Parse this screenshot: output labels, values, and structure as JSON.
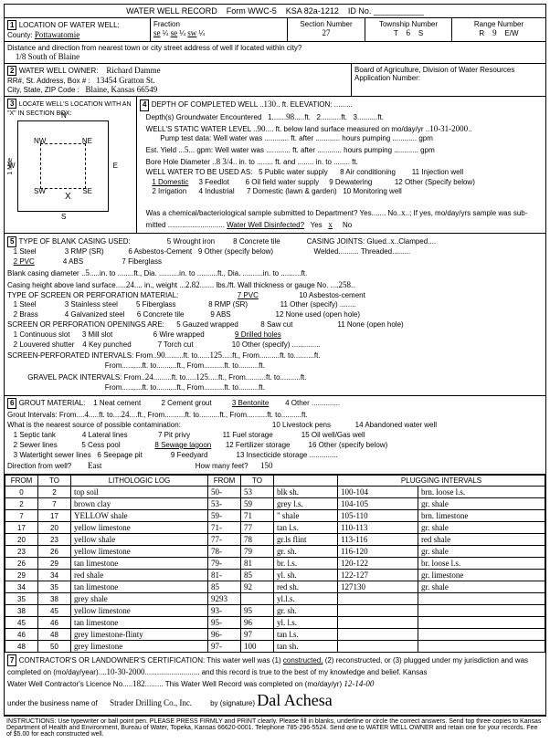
{
  "header": {
    "title": "WATER WELL RECORD",
    "form": "Form WWC-5",
    "ksa": "KSA 82a-1212",
    "id_label": "ID No."
  },
  "loc": {
    "label": "LOCATION OF WATER WELL:",
    "county_label": "County:",
    "county": "Pottawatomie",
    "fraction_label": "Fraction",
    "f1": "se",
    "q1": "¼",
    "f2": "se",
    "q2": "¼",
    "f3": "sw",
    "q3": "¼",
    "section_label": "Section Number",
    "section": "27",
    "township_label": "Township Number",
    "township": "6",
    "ts": "S",
    "range_label": "Range Number",
    "range": "9",
    "rew": "E/W",
    "dist_label": "Distance and direction from nearest town or city street address of well if located within city?",
    "dist": "1/8 South of Blaine"
  },
  "owner": {
    "label": "WATER WELL OWNER:",
    "name": "Richard Damme",
    "addr_label": "RR#, St. Address, Box # :",
    "addr": "13454  Gratton St.",
    "city_label": "City, State, ZIP Code :",
    "city": "Blaine, Kansas  66549",
    "board": "Board of Agriculture, Division of Water Resources",
    "appno": "Application Number:"
  },
  "sec3": {
    "label": "LOCATE WELL'S LOCATION WITH AN \"X\" IN SECTION BOX:",
    "nw": "NW",
    "ne": "NE",
    "sw": "SW",
    "se": "SE",
    "n": "N",
    "s": "S",
    "e": "E",
    "w": "W",
    "mile": "1 Mile"
  },
  "sec4": {
    "label": "DEPTH OF COMPLETED WELL",
    "depth": "130",
    "ft_elev": "ft. ELEVATION:",
    "gw_label": "Depth(s) Groundwater Encountered",
    "gw1": "98",
    "gw_ft": "ft.",
    "swl_label": "WELL'S STATIC WATER LEVEL",
    "swl": "90",
    "swl_txt": "ft. below land surface measured on mo/day/yr",
    "swl_date": "10-31-2000",
    "pump_label": "Pump test data:  Well water was",
    "pump_ft": "ft. after",
    "pump_hrs": "hours pumping",
    "pump_gpm": "gpm",
    "yield_label": "Est. Yield",
    "yield": "5",
    "yield_gpm": "gpm:  Well water was",
    "yield_ft": "ft. after",
    "yield_hrs": "hours pumping",
    "yield_gpm2": "gpm",
    "bore_label": "Bore Hole Diameter",
    "bore": "8 3/4",
    "bore_in": "in. to",
    "bore_ft": "ft. and",
    "bore_in2": "in. to",
    "bore_ft2": "ft.",
    "use_label": "WELL WATER TO BE USED AS:",
    "u1": "1 Domestic",
    "u2": "2 Irrigation",
    "u3": "3 Feedlot",
    "u4": "4 Industrial",
    "u5": "5 Public water supply",
    "u6": "6 Oil field water supply",
    "u7": "7 Domestic (lawn & garden)",
    "u8": "8 Air conditioning",
    "u9": "9 Dewatering",
    "u10": "10 Monitoring well",
    "u11": "11 Injection well",
    "u12": "12 Other (Specify below)",
    "chem": "Was a chemical/bacteriological sample submitted to Department?  Yes",
    "chem_no": "No",
    "chem_x": "x",
    "chem_txt": "; If yes, mo/day/yrs sample was sub-",
    "mitted": "mitted",
    "disinf": "Water Well Disinfected?",
    "disinf_yes": "Yes",
    "disinf_x": "x",
    "disinf_no": "No"
  },
  "sec5": {
    "label": "TYPE OF BLANK CASING USED:",
    "c1": "1 Steel",
    "c2": "2 PVC",
    "c3": "3 RMP (SR)",
    "c4": "4 ABS",
    "c5": "5 Wrought iron",
    "c6": "6 Asbestos-Cement",
    "c7": "7 Fiberglass",
    "c8": "8 Concrete tile",
    "c9": "9 Other (specify below)",
    "joints": "CASING JOINTS:  Glued",
    "jx": "x",
    "jclamp": "Clamped",
    "jweld": "Welded",
    "jthread": "Threaded",
    "bcd_label": "Blank casing diameter",
    "bcd": "5",
    "bcd_in": "in. to",
    "bcd_ft": "ft., Dia.",
    "bcd_in2": "in. to",
    "bcd_ft2": "ft., Dia.",
    "bcd_in3": "in. to",
    "bcd_ft3": "ft.",
    "chals_label": "Casing height above land surface",
    "chals": "24",
    "chals_in": "in., weight",
    "chals_w": "2.82",
    "chals_lbs": "lbs./ft. Wall thickness or gauge No.",
    "gauge": ".258",
    "screen_label": "TYPE OF SCREEN OR PERFORATION MATERIAL:",
    "s1": "1 Steel",
    "s2": "2 Brass",
    "s3": "3 Stainless steel",
    "s4": "4 Galvanized steel",
    "s5": "5 Fiberglass",
    "s6": "6 Concrete tile",
    "s7": "7 PVC",
    "s8": "8 RMP (SR)",
    "s9": "9 ABS",
    "s10": "10 Asbestos-cement",
    "s11": "11 Other (specify)",
    "s12": "12 None used (open hole)",
    "perf_label": "SCREEN OR PERFORATION OPENINGS ARE:",
    "p1": "1 Continuous slot",
    "p2": "2 Louvered shutter",
    "p3": "3 Mill slot",
    "p4": "4 Key punched",
    "p5": "5 Gauzed wrapped",
    "p6": "6 Wire wrapped",
    "p7": "7 Torch cut",
    "p8": "8 Saw cut",
    "p9": "9 Drilled holes",
    "p10": "10 Other (specify)",
    "p11": "11 None (open hole)",
    "spi_label": "SCREEN-PERFORATED INTERVALS:  From",
    "spi_from": "90",
    "spi_to": "125",
    "gpi_label": "GRAVEL PACK INTERVALS:  From",
    "gpi_from": "24",
    "gpi_to": "125"
  },
  "sec6": {
    "label": "GROUT MATERIAL:",
    "g1": "1 Neat cement",
    "g2": "2 Cement grout",
    "g3": "3 Bentonite",
    "g4": "4 Other",
    "gi_label": "Grout Intervals:  From",
    "gi_from": "4",
    "gi_ft_to": "ft. to",
    "gi_to": "24",
    "gi_ft": "ft., From",
    "contam_label": "What is the nearest source of possible contamination:",
    "n1": "1 Septic tank",
    "n2": "2 Sewer lines",
    "n3": "3 Watertight sewer lines",
    "n4": "4 Lateral lines",
    "n5": "5 Cess pool",
    "n6": "6 Seepage pit",
    "n7": "7 Pit privy",
    "n8": "8 Sewage lagoon",
    "n9": "9 Feedyard",
    "n10": "10 Livestock pens",
    "n11": "11 Fuel storage",
    "n12": "12 Fertilizer storage",
    "n13": "13 Insecticide storage",
    "n14": "14 Abandoned water well",
    "n15": "15 Oil well/Gas well",
    "n16": "16 Other (specify below)",
    "dir_label": "Direction from well?",
    "dir": "East",
    "feet_label": "How many feet?",
    "feet": "150"
  },
  "log": {
    "h_from": "FROM",
    "h_to": "TO",
    "h_lith": "LITHOLOGIC LOG",
    "h_from2": "FROM",
    "h_to2": "TO",
    "h_plug": "PLUGGING INTERVALS",
    "rows": [
      {
        "f": "0",
        "t": "2",
        "l": "top soil",
        "f2": "50-",
        "t2": "53",
        "c": "blk sh.",
        "p": "100-104",
        "pd": "brn. loose l.s."
      },
      {
        "f": "2",
        "t": "7",
        "l": "brown clay",
        "f2": "53-",
        "t2": "59",
        "c": "grey l.s.",
        "p": "104-105",
        "pd": "gr. shale"
      },
      {
        "f": "7",
        "t": "17",
        "l": "YELLOW shale",
        "f2": "59-",
        "t2": "71",
        "c": "\" shale",
        "p": "105-110",
        "pd": "brn. limestone"
      },
      {
        "f": "17",
        "t": "20",
        "l": "yellow limestone",
        "f2": "71-",
        "t2": "77",
        "c": "tan l.s.",
        "p": "110-113",
        "pd": "gr. shale"
      },
      {
        "f": "20",
        "t": "23",
        "l": "yellow shale",
        "f2": "77-",
        "t2": "78",
        "c": "gr.ls flint",
        "p": "113-116",
        "pd": "red shale"
      },
      {
        "f": "23",
        "t": "26",
        "l": "yellow limestone",
        "f2": "78-",
        "t2": "79",
        "c": "gr. sh.",
        "p": "116-120",
        "pd": "gr. shale"
      },
      {
        "f": "26",
        "t": "29",
        "l": "tan limestone",
        "f2": "79-",
        "t2": "81",
        "c": "br. l.s.",
        "p": "120-122",
        "pd": "br. loose l.s."
      },
      {
        "f": "29",
        "t": "34",
        "l": "red shale",
        "f2": "81-",
        "t2": "85",
        "c": "yl. sh.",
        "p": "122-127",
        "pd": "gr. limestone"
      },
      {
        "f": "34",
        "t": "35",
        "l": "tan limestone",
        "f2": "85",
        "t2": "92",
        "c": "red sh.",
        "p": "127130",
        "pd": "gr. shale"
      },
      {
        "f": "35",
        "t": "38",
        "l": "grey shale",
        "f2": "9293",
        "t2": "",
        "c": "yl.l.s.",
        "p": "",
        "pd": ""
      },
      {
        "f": "38",
        "t": "45",
        "l": "yellow limestone",
        "f2": "93-",
        "t2": "95",
        "c": "gr. sh.",
        "p": "",
        "pd": ""
      },
      {
        "f": "45",
        "t": "46",
        "l": "tan limestone",
        "f2": "95-",
        "t2": "96",
        "c": "yl. l.s.",
        "p": "",
        "pd": ""
      },
      {
        "f": "46",
        "t": "48",
        "l": "grey limestone-flinty",
        "f2": "96-",
        "t2": "97",
        "c": "tan l.s.",
        "p": "",
        "pd": ""
      },
      {
        "f": "48",
        "t": "50",
        "l": "grey limestone",
        "f2": "97-",
        "t2": "100",
        "c": "tan sh.",
        "p": "",
        "pd": ""
      }
    ]
  },
  "sec7": {
    "cert": "CONTRACTOR'S OR LANDOWNER'S CERTIFICATION: This water well was (1)",
    "constructed": "constructed,",
    "rest": "(2) reconstructed, or (3) plugged under my jurisdiction and was",
    "comp_label": "completed on (mo/day/year)",
    "comp": "10-30-2000",
    "truth": "and this record is true to the best of my knowledge and belief. Kansas",
    "lic_label": "Water Well Contractor's Licence No.",
    "lic": "182",
    "rec_label": "This Water Well Record was completed on (mo/day/yr)",
    "rec_date": "12-14-00",
    "bus_label": "under the business name of",
    "bus": "Strader Drilling Co., Inc.",
    "by": "by (signature)",
    "sig": "Dal Achesa"
  },
  "instr": "INSTRUCTIONS: Use typewriter or ball point pen. PLEASE PRESS FIRMLY and PRINT clearly. Please fill in blanks, underline or circle the correct answers. Send top three copies to Kansas Department of Health and Environment, Bureau of Water, Topeka, Kansas 66620-0001. Telephone 785-296-5524. Send one to WATER WELL OWNER and retain one for your records. Fee of $5.00 for each constructed well."
}
